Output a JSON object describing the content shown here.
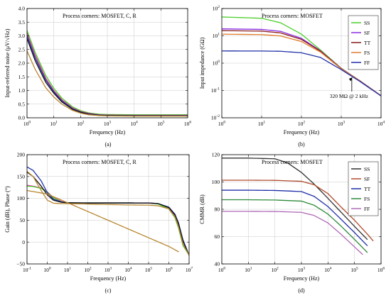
{
  "chart_data": [
    {
      "type": "line",
      "caption": "(a)",
      "annotation": "Process corners: MOSFET, C, R",
      "xlabel": "Frequency (Hz)",
      "ylabel": "Input-referred noise (μV/√Hz)",
      "xscale": "log",
      "xlim": [
        1,
        1000000
      ],
      "yscale": "linear",
      "ylim": [
        0,
        4
      ],
      "xticks": [
        1,
        10,
        100,
        1000,
        10000,
        100000,
        1000000
      ],
      "xtick_labels": [
        "10^0",
        "10^1",
        "10^2",
        "10^3",
        "10^4",
        "10^5",
        "10^6"
      ],
      "yticks": [
        0,
        0.5,
        1,
        1.5,
        2,
        2.5,
        3,
        3.5,
        4
      ],
      "ytick_labels": [
        "0.0",
        "0.5",
        "1.0",
        "1.5",
        "2.0",
        "2.5",
        "3.0",
        "3.5",
        "4.0"
      ],
      "grid": true,
      "series": [
        {
          "color": "#4ccf2a",
          "x": [
            1,
            2,
            5,
            10,
            20,
            50,
            100,
            200,
            500,
            1000,
            10000,
            100000,
            1000000
          ],
          "y": [
            3.2,
            2.4,
            1.55,
            1.08,
            0.72,
            0.4,
            0.26,
            0.18,
            0.13,
            0.12,
            0.11,
            0.11,
            0.11
          ]
        },
        {
          "color": "#d23c8c",
          "x": [
            1,
            2,
            5,
            10,
            20,
            50,
            100,
            200,
            500,
            1000,
            10000,
            100000,
            1000000
          ],
          "y": [
            3.1,
            2.3,
            1.45,
            1.0,
            0.66,
            0.36,
            0.23,
            0.16,
            0.11,
            0.1,
            0.09,
            0.09,
            0.09
          ]
        },
        {
          "color": "#1f2fa8",
          "x": [
            1,
            2,
            5,
            10,
            20,
            50,
            100,
            200,
            500,
            1000,
            10000,
            100000,
            1000000
          ],
          "y": [
            3.0,
            2.2,
            1.38,
            0.95,
            0.62,
            0.33,
            0.21,
            0.14,
            0.1,
            0.09,
            0.08,
            0.08,
            0.08
          ]
        },
        {
          "color": "#111111",
          "x": [
            1,
            2,
            5,
            10,
            20,
            50,
            100,
            200,
            500,
            1000,
            10000,
            100000,
            1000000
          ],
          "y": [
            2.9,
            2.1,
            1.3,
            0.9,
            0.58,
            0.31,
            0.2,
            0.13,
            0.09,
            0.08,
            0.07,
            0.07,
            0.07
          ]
        },
        {
          "color": "#b8862e",
          "x": [
            1,
            2,
            5,
            10,
            20,
            50,
            100,
            200,
            500,
            1000,
            10000,
            100000,
            1000000
          ],
          "y": [
            2.45,
            1.78,
            1.1,
            0.76,
            0.5,
            0.27,
            0.17,
            0.11,
            0.08,
            0.07,
            0.06,
            0.06,
            0.06
          ]
        }
      ]
    },
    {
      "type": "line",
      "caption": "(b)",
      "annotation": "Process corners: MOSFET",
      "xlabel": "Frequency (Hz)",
      "ylabel": "Input impedance (GΩ)",
      "xscale": "log",
      "xlim": [
        1,
        10000
      ],
      "yscale": "log",
      "ylim": [
        0.01,
        100
      ],
      "xticks": [
        1,
        10,
        100,
        1000,
        10000
      ],
      "xtick_labels": [
        "10^0",
        "10^1",
        "10^2",
        "10^3",
        "10^4"
      ],
      "yticks": [
        0.01,
        0.1,
        1,
        10,
        100
      ],
      "ytick_labels": [
        "10^-2",
        "10^-1",
        "10^0",
        "10^1",
        "10^2"
      ],
      "grid": true,
      "legend": "right",
      "point_annotation": {
        "text": "320 MΩ @ 2 kHz",
        "x": 2000,
        "y": 0.32
      },
      "series": [
        {
          "name": "SS",
          "color": "#4ccf2a",
          "x": [
            1,
            10,
            30,
            100,
            300,
            1000,
            3000,
            10000
          ],
          "y": [
            49,
            44,
            30,
            11.5,
            3.05,
            0.65,
            0.22,
            0.064
          ]
        },
        {
          "name": "SF",
          "color": "#8a2be2",
          "x": [
            1,
            10,
            30,
            100,
            300,
            1000,
            3000,
            10000
          ],
          "y": [
            18,
            17.2,
            14.6,
            8.1,
            2.85,
            0.64,
            0.22,
            0.064
          ]
        },
        {
          "name": "TT",
          "color": "#8b1a1a",
          "x": [
            1,
            10,
            30,
            100,
            300,
            1000,
            3000,
            10000
          ],
          "y": [
            15.5,
            14.9,
            12.8,
            7.4,
            2.75,
            0.63,
            0.22,
            0.064
          ]
        },
        {
          "name": "FS",
          "color": "#e07b2a",
          "x": [
            1,
            10,
            30,
            100,
            300,
            1000,
            3000,
            10000
          ],
          "y": [
            11.5,
            11.1,
            9.9,
            6.2,
            2.55,
            0.62,
            0.215,
            0.063
          ]
        },
        {
          "name": "FF",
          "color": "#1f2fa8",
          "x": [
            1,
            10,
            30,
            100,
            300,
            1000,
            3000,
            10000
          ],
          "y": [
            2.8,
            2.78,
            2.72,
            2.4,
            1.62,
            0.58,
            0.21,
            0.063
          ]
        }
      ]
    },
    {
      "type": "line",
      "caption": "(c)",
      "annotation": "Process corners: MOSFET, C, R",
      "xlabel": "Frequency (Hz)",
      "ylabel": "Gain (dB), Phase (°)",
      "xscale": "log",
      "xlim": [
        0.1,
        10000000
      ],
      "yscale": "linear",
      "ylim": [
        -50,
        200
      ],
      "xticks": [
        0.1,
        1,
        10,
        100,
        1000,
        10000,
        100000,
        1000000,
        10000000
      ],
      "xtick_labels": [
        "10^-1",
        "10^0",
        "10^1",
        "10^2",
        "10^3",
        "10^4",
        "10^5",
        "10^6",
        "10^7"
      ],
      "yticks": [
        -50,
        0,
        50,
        100,
        150,
        200
      ],
      "ytick_labels": [
        "−50",
        "0",
        "50",
        "100",
        "150",
        "200"
      ],
      "grid": true,
      "series": [
        {
          "color": "#e040b0",
          "x": [
            0.1,
            0.2,
            0.5,
            1,
            2,
            5,
            10,
            100,
            1000,
            10000,
            100000,
            300000,
            1000000,
            2000000,
            3000000,
            5000000,
            10000000
          ],
          "y": [
            130,
            128,
            124,
            115,
            102,
            93,
            90,
            89.6,
            89.6,
            89.6,
            89.5,
            88,
            78,
            58,
            35,
            -5,
            -30
          ]
        },
        {
          "color": "#4ccf2a",
          "x": [
            0.1,
            0.2,
            0.5,
            1,
            2,
            5,
            10,
            100,
            1000,
            10000,
            100000,
            300000,
            1000000,
            2000000,
            3000000,
            5000000,
            10000000
          ],
          "y": [
            128,
            127,
            123,
            114,
            101,
            92,
            90,
            89.5,
            89.5,
            89.5,
            89.4,
            87,
            76,
            56,
            32,
            -8,
            -30
          ]
        },
        {
          "color": "#1f2fa8",
          "x": [
            0.1,
            0.2,
            0.5,
            1,
            2,
            5,
            10,
            100,
            1000,
            10000,
            100000,
            300000,
            1000000,
            2000000,
            3000000,
            5000000,
            10000000
          ],
          "y": [
            172,
            164,
            140,
            113,
            98,
            92,
            90,
            89.5,
            89.5,
            89.5,
            89.4,
            88,
            80,
            64,
            44,
            5,
            -30
          ]
        },
        {
          "color": "#111111",
          "x": [
            0.1,
            0.2,
            0.5,
            1,
            2,
            5,
            10,
            100,
            1000,
            10000,
            100000,
            300000,
            1000000,
            2000000,
            3000000,
            5000000,
            10000000
          ],
          "y": [
            160,
            150,
            128,
            108,
            96,
            91,
            90,
            89.5,
            89.5,
            89.5,
            89.4,
            88,
            79,
            62,
            42,
            2,
            -30
          ]
        },
        {
          "color": "#b8862e",
          "x": [
            0.1,
            0.2,
            0.5,
            1,
            2,
            5,
            10,
            100,
            1000,
            10000,
            100000,
            300000,
            1000000,
            2000000,
            3000000,
            5000000,
            10000000
          ],
          "y": [
            162,
            150,
            118,
            96,
            89,
            88,
            88,
            87,
            86,
            85,
            84.5,
            83,
            76,
            58,
            35,
            -5,
            -30
          ]
        },
        {
          "color": "#b8862e",
          "x": [
            0.1,
            1,
            10,
            100,
            1000,
            10000,
            100000,
            1000000,
            3000000
          ],
          "y": [
            118,
            110,
            90,
            70,
            50,
            30,
            10,
            -10,
            -22
          ]
        }
      ]
    },
    {
      "type": "line",
      "caption": "(d)",
      "annotation": "Process corners: MOSFET",
      "xlabel": "Frequency (Hz)",
      "ylabel": "CMMR (dB)",
      "xscale": "log",
      "xlim": [
        1,
        1000000
      ],
      "yscale": "linear",
      "ylim": [
        40,
        120
      ],
      "xticks": [
        1,
        10,
        100,
        1000,
        10000,
        100000,
        1000000
      ],
      "xtick_labels": [
        "10^0",
        "10^1",
        "10^2",
        "10^3",
        "10^4",
        "10^5",
        "10^6"
      ],
      "yticks": [
        40,
        60,
        80,
        100,
        120
      ],
      "ytick_labels": [
        "40",
        "60",
        "80",
        "100",
        "120"
      ],
      "grid": true,
      "legend": "right",
      "series": [
        {
          "name": "SS",
          "color": "#333333",
          "x": [
            1,
            10,
            100,
            300,
            1000,
            3000,
            10000,
            100000,
            300000
          ],
          "y": [
            117.5,
            117.5,
            117,
            114,
            107,
            98.5,
            88,
            67.5,
            58
          ]
        },
        {
          "name": "SF",
          "color": "#b04a2a",
          "x": [
            1,
            10,
            100,
            1000,
            3000,
            10000,
            30000,
            100000,
            300000,
            500000
          ],
          "y": [
            101.3,
            101.3,
            101.2,
            100.5,
            98,
            91.5,
            82,
            72,
            62,
            57
          ]
        },
        {
          "name": "TT",
          "color": "#1f2fa8",
          "x": [
            1,
            10,
            100,
            1000,
            3000,
            10000,
            30000,
            100000,
            300000
          ],
          "y": [
            94,
            94,
            93.8,
            93,
            89.5,
            82,
            73,
            63,
            53.5
          ]
        },
        {
          "name": "FS",
          "color": "#2e8b3a",
          "x": [
            1,
            10,
            100,
            1000,
            3000,
            10000,
            30000,
            100000,
            300000
          ],
          "y": [
            87,
            87,
            86.8,
            86,
            83,
            76.5,
            68,
            58,
            48.5
          ]
        },
        {
          "name": "FF",
          "color": "#b06ab8",
          "x": [
            1,
            10,
            100,
            1000,
            3000,
            10000,
            30000,
            100000,
            200000
          ],
          "y": [
            78.5,
            78.5,
            78.4,
            77.8,
            75.5,
            70,
            62,
            52.5,
            47
          ]
        }
      ]
    }
  ]
}
